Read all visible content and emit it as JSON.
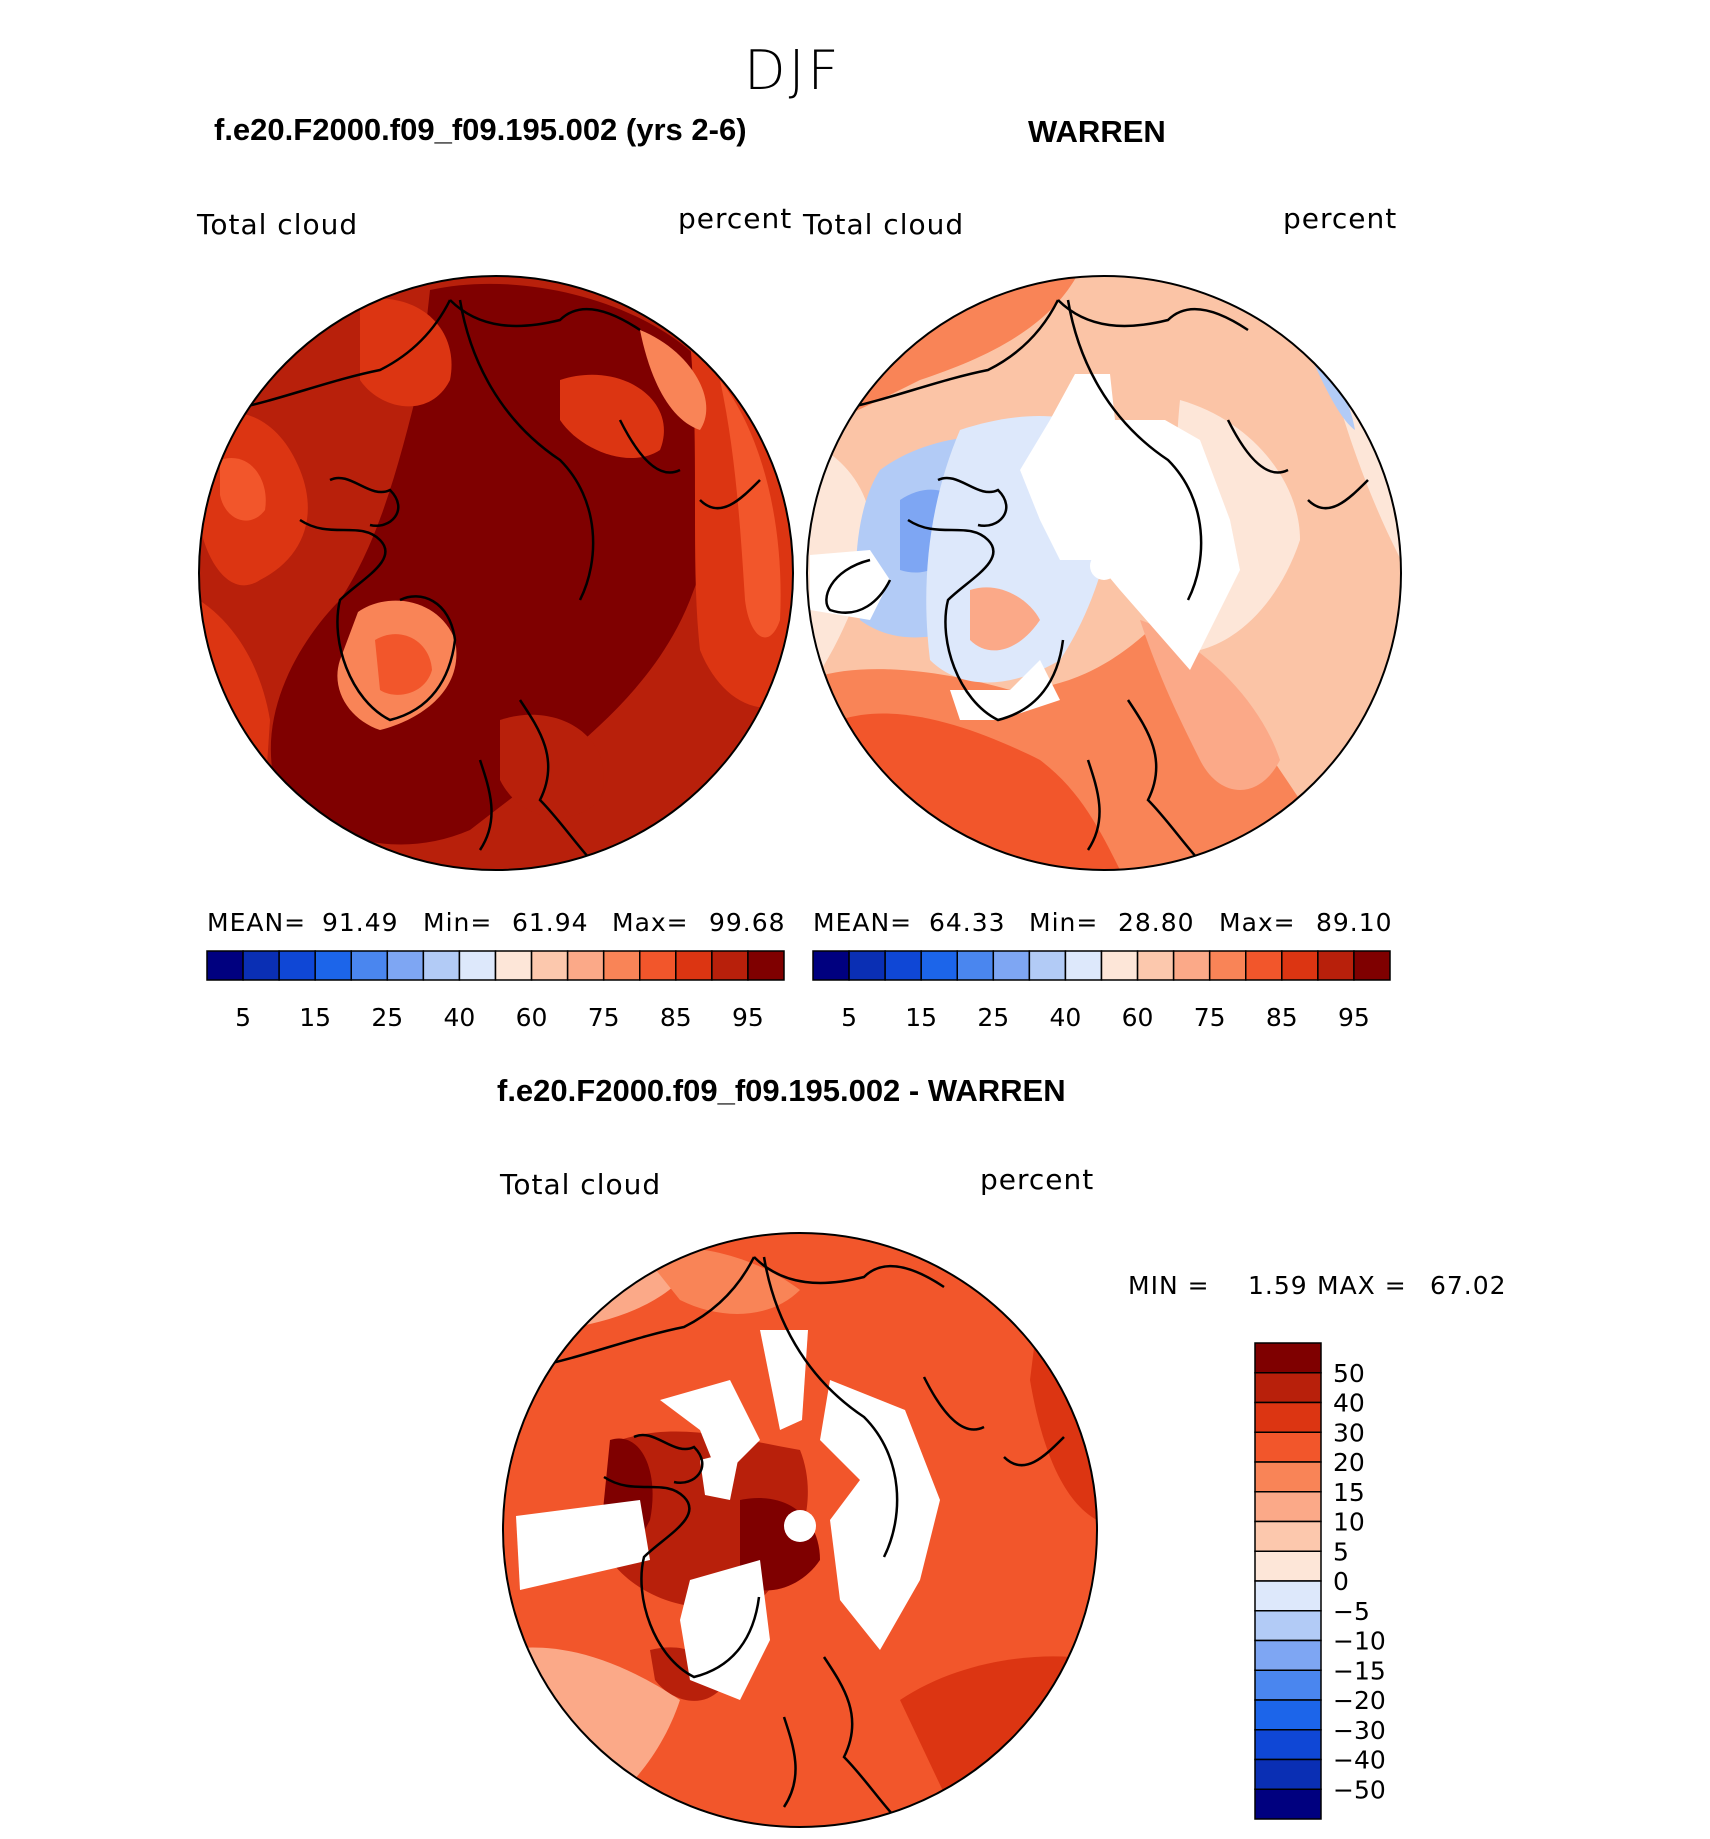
{
  "figure": {
    "title": "DJF"
  },
  "panels": [
    {
      "case_title": "f.e20.F2000.f09_f09.195.002 (yrs 2-6)",
      "variable": "Total cloud",
      "units": "percent",
      "stats": {
        "mean_label": "MEAN=",
        "mean": "91.49",
        "min_label": "Min=",
        "min": "61.94",
        "max_label": "Max=",
        "max": "99.68"
      }
    },
    {
      "case_title": "WARREN",
      "variable": "Total cloud",
      "units": "percent",
      "stats": {
        "mean_label": "MEAN=",
        "mean": "64.33",
        "min_label": "Min=",
        "min": "28.80",
        "max_label": "Max=",
        "max": "89.10"
      }
    },
    {
      "case_title": "f.e20.F2000.f09_f09.195.002 - WARREN",
      "variable": "Total cloud",
      "units": "percent",
      "stats": {
        "min_label": "MIN =",
        "min": "1.59",
        "max_label": "MAX =",
        "max": "67.02"
      }
    }
  ],
  "colorbar_abs": {
    "colors": [
      "#00007f",
      "#0a2fb4",
      "#0f47d6",
      "#1c65ea",
      "#4a86ef",
      "#7ea6f3",
      "#b2cbf6",
      "#dde8fb",
      "#fde6d8",
      "#fcc8ad",
      "#fba988",
      "#f98457",
      "#f2562b",
      "#dc3512",
      "#b8200b",
      "#7f0000"
    ],
    "tick_labels": [
      "5",
      "15",
      "25",
      "40",
      "60",
      "75",
      "85",
      "95"
    ]
  },
  "colorbar_diff": {
    "colors_top_to_bottom": [
      "#7f0000",
      "#b8200b",
      "#dc3512",
      "#f2562b",
      "#f98457",
      "#fba988",
      "#fcc8ad",
      "#fde6d8",
      "#dde8fb",
      "#b2cbf6",
      "#7ea6f3",
      "#4a86ef",
      "#1c65ea",
      "#0f47d6",
      "#0a2fb4",
      "#00007f"
    ],
    "tick_labels": [
      "50",
      "40",
      "30",
      "20",
      "15",
      "10",
      "5",
      "0",
      "−5",
      "−10",
      "−15",
      "−20",
      "−30",
      "−40",
      "−50"
    ]
  }
}
